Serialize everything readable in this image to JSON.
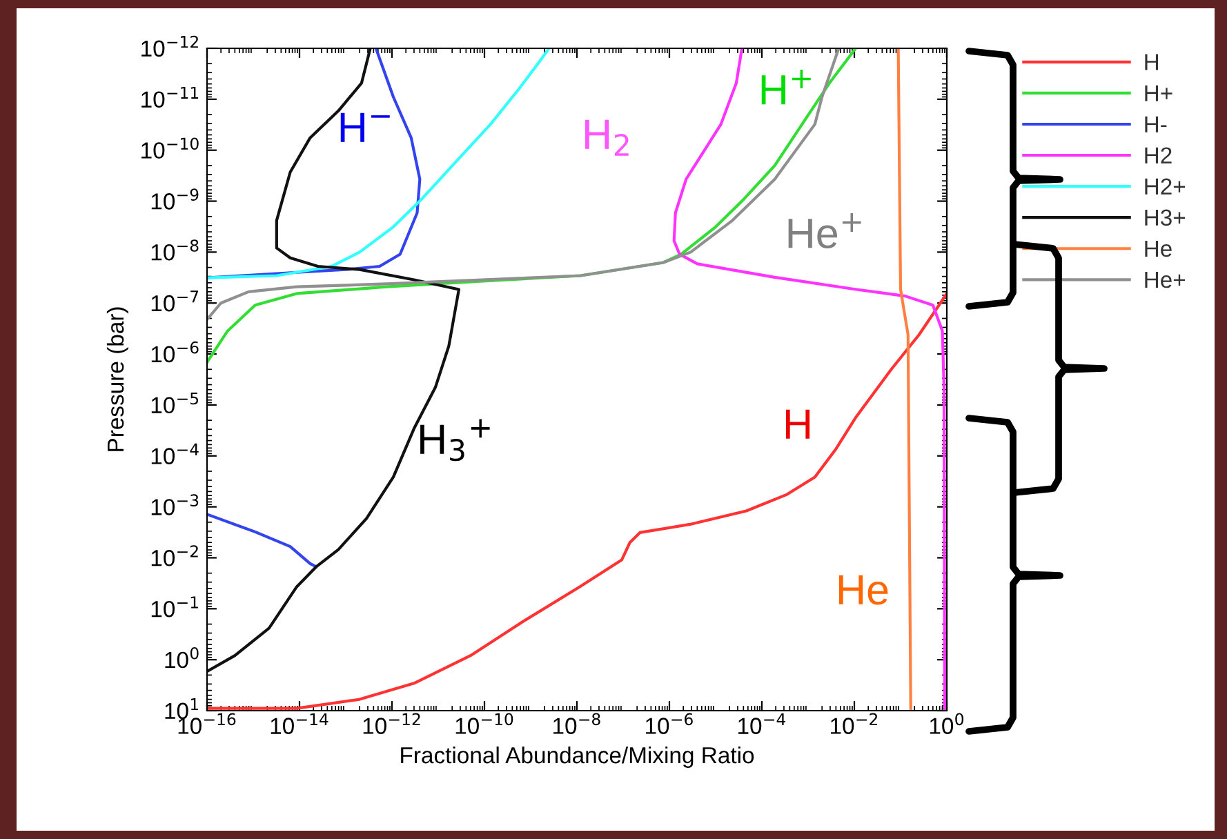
{
  "chart_data": {
    "type": "line",
    "xlabel": "Fractional Abundance/Mixing Ratio",
    "ylabel": "Pressure (bar)",
    "log": "xy",
    "grid": false,
    "legend": "right",
    "marker": "none",
    "line_style": "solid",
    "xlim": [
      1e-16,
      1
    ],
    "ylim": [
      10,
      1e-12
    ],
    "xticks": [
      {
        "value": 1e-16,
        "label": "10$^{−16}$"
      },
      {
        "value": 1e-14,
        "label": "10$^{−14}$"
      },
      {
        "value": 1e-12,
        "label": "10$^{−12}$"
      },
      {
        "value": 1e-10,
        "label": "10$^{−10}$"
      },
      {
        "value": 1e-08,
        "label": "10$^{−8}$"
      },
      {
        "value": 1e-06,
        "label": "10$^{−6}$"
      },
      {
        "value": 0.0001,
        "label": "10$^{−4}$"
      },
      {
        "value": 0.01,
        "label": "10$^{−2}$"
      },
      {
        "value": 1,
        "label": "10$^{0}$"
      }
    ],
    "yticks": [
      {
        "value": 1e-12,
        "label": "10$^{−12}$"
      },
      {
        "value": 1e-11,
        "label": "10$^{−11}$"
      },
      {
        "value": 1e-10,
        "label": "10$^{−10}$"
      },
      {
        "value": 1e-09,
        "label": "10$^{−9}$"
      },
      {
        "value": 1e-08,
        "label": "10$^{−8}$"
      },
      {
        "value": 1e-07,
        "label": "10$^{−7}$"
      },
      {
        "value": 1e-06,
        "label": "10$^{−6}$"
      },
      {
        "value": 1e-05,
        "label": "10$^{−5}$"
      },
      {
        "value": 0.0001,
        "label": "10$^{−4}$"
      },
      {
        "value": 0.001,
        "label": "10$^{−3}$"
      },
      {
        "value": 0.01,
        "label": "10$^{−2}$"
      },
      {
        "value": 0.1,
        "label": "10$^{−1}$"
      },
      {
        "value": 1,
        "label": "10$^{0}$"
      },
      {
        "value": 10,
        "label": "10$^{1}$"
      }
    ],
    "series": [
      {
        "name": "H",
        "color": "#ff3333",
        "x": [
          1e-16,
          8.7e-15,
          2e-13,
          3e-12,
          5e-11,
          7.4e-10,
          1.15e-08,
          9.3e-08,
          1.4e-07,
          2.3e-07,
          2.8e-06,
          4.6e-05,
          0.00035,
          0.0014,
          0.004,
          0.011,
          0.063,
          0.25,
          1
        ],
        "values": [
          9,
          9,
          6,
          2.9,
          0.83,
          0.17,
          0.037,
          0.011,
          0.005,
          0.0032,
          0.0022,
          0.0012,
          0.00057,
          0.00026,
          7.3e-05,
          1.7e-05,
          2e-06,
          4.2e-07,
          6.5e-08
        ]
      },
      {
        "name": "H+",
        "color": "#33dd33",
        "x": [
          1e-16,
          2.8e-16,
          1.1e-15,
          8.7e-15,
          7.6e-13,
          9.3e-11,
          1.2e-08,
          7.4e-07,
          1.8e-06,
          1e-05,
          4e-05,
          0.00019,
          0.00074,
          0.0029,
          0.0107
        ],
        "values": [
          1.45e-06,
          3.5e-07,
          1.1e-07,
          6.5e-08,
          4.8e-08,
          3.7e-08,
          2.9e-08,
          1.6e-08,
          1.1e-08,
          3.2e-09,
          9.3e-10,
          2e-10,
          3.1e-11,
          4.8e-12,
          1e-12
        ]
      },
      {
        "name": "H-",
        "color": "#3344ee",
        "x": [
          1e-16,
          8.7e-15,
          1e-13,
          5.4e-13,
          1.5e-12,
          3.5e-12,
          4e-12,
          2.6e-12,
          1.07e-12,
          4.5e-13,
          null,
          1e-16,
          1.1e-15,
          6.3e-15,
          1.7e-14,
          2.3e-14
        ],
        "values": [
          3.2e-08,
          2.5e-08,
          2.2e-08,
          1.9e-08,
          1.1e-08,
          1.7e-09,
          3.7e-10,
          5.7e-11,
          9e-12,
          1e-12,
          null,
          0.0014,
          0.0031,
          0.006,
          0.013,
          0.015
        ]
      },
      {
        "name": "H2",
        "color": "#ff33ff",
        "x": [
          3.7e-05,
          2.8e-05,
          1.3e-05,
          2.3e-06,
          1.35e-06,
          1.26e-06,
          1.66e-06,
          4e-06,
          0.00018,
          0.011,
          0.126,
          0.5,
          0.8,
          0.87,
          0.9
        ],
        "values": [
          1e-12,
          4.8e-12,
          3.1e-11,
          3.7e-10,
          1.7e-09,
          6e-09,
          1.1e-08,
          1.7e-08,
          3.1e-08,
          5.4e-08,
          7.3e-08,
          1.1e-07,
          3.5e-07,
          4.2e-06,
          10
        ]
      },
      {
        "name": "H2+",
        "color": "#33ffff",
        "x": [
          1e-16,
          3.2e-15,
          5e-14,
          2e-13,
          1.07e-12,
          4.3e-12,
          2.4e-11,
          1.35e-10,
          5.4e-10,
          1.5e-09,
          2.5e-09
        ],
        "values": [
          3.2e-08,
          2.9e-08,
          1.9e-08,
          1e-08,
          3.2e-09,
          9.3e-10,
          1.7e-10,
          3.1e-11,
          6.5e-12,
          1.9e-12,
          1e-12
        ]
      },
      {
        "name": "H3+",
        "color": "#111111",
        "x": [
          1e-16,
          4e-16,
          2.2e-15,
          8.7e-15,
          2.3e-14,
          6.9e-14,
          2.8e-13,
          1.07e-12,
          3e-12,
          8.7e-12,
          1.7e-11,
          2.8e-11,
          3e-12,
          2e-13,
          2.5e-14,
          6.3e-15,
          3.2e-15,
          3.2e-15,
          6.3e-15,
          1.7e-14,
          6.9e-14,
          2.2e-13,
          3.4e-13
        ],
        "values": [
          1.7,
          0.83,
          0.24,
          0.037,
          0.015,
          0.0069,
          0.0017,
          0.00026,
          2.9e-05,
          4.5e-06,
          6.9e-07,
          5.4e-08,
          3.5e-08,
          2.2e-08,
          1.9e-08,
          1.3e-08,
          8.3e-09,
          2.4e-09,
          2.7e-10,
          5.7e-11,
          1.7e-11,
          4.8e-12,
          1e-12
        ]
      },
      {
        "name": "He",
        "color": "#ff8040",
        "x": [
          0.089,
          0.1,
          0.145,
          0.166
        ],
        "values": [
          1e-12,
          5.4e-08,
          4.2e-07,
          10
        ]
      },
      {
        "name": "He+",
        "color": "#909090",
        "x": [
          1e-16,
          2e-16,
          7.9e-16,
          8.7e-15,
          7.6e-13,
          1.2e-08,
          7.4e-07,
          2.9e-06,
          2.3e-05,
          0.00019,
          0.0014,
          0.002,
          0.0046
        ],
        "values": [
          2.1e-07,
          1e-07,
          6e-08,
          4.8e-08,
          4.2e-08,
          2.9e-08,
          1.6e-08,
          1e-08,
          2.4e-09,
          3.7e-10,
          3.1e-11,
          9e-12,
          1e-12
        ]
      }
    ],
    "annotations": [
      "H$^{−}$",
      "H$_{2}$",
      "H$^{+}$",
      "He$^{+}$",
      "H$_{3}$$^{+}$",
      "H",
      "He"
    ]
  }
}
